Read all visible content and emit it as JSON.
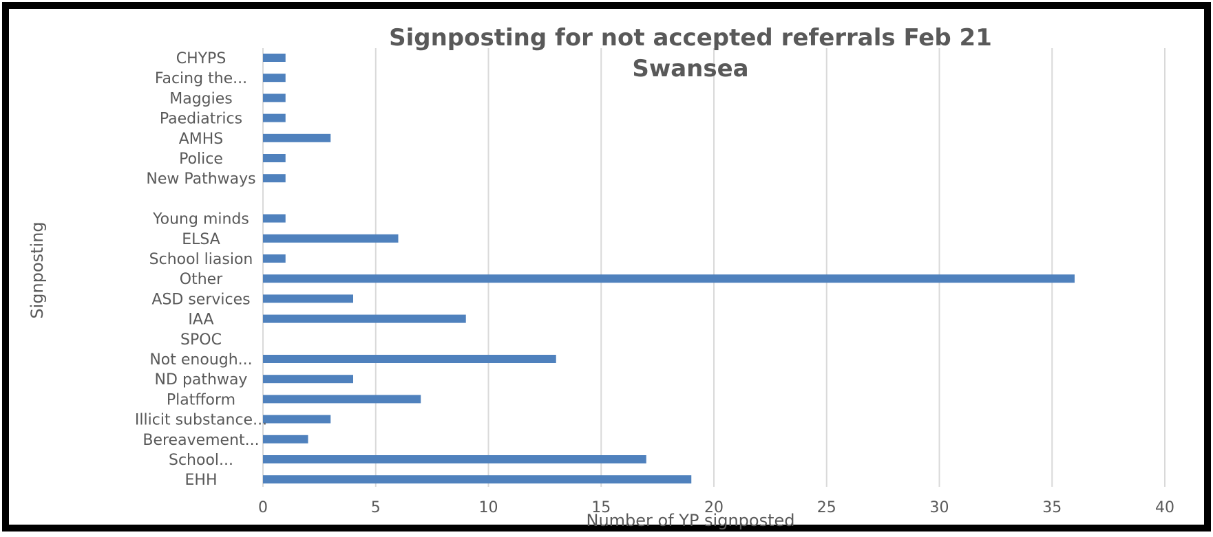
{
  "chart_data": {
    "type": "bar",
    "orientation": "horizontal",
    "title": "Signposting for not accepted referrals Feb 21 Swansea",
    "title_lines": [
      "Signposting for not accepted referrals Feb 21",
      "Swansea"
    ],
    "xlabel": "Number  of YP signposted",
    "ylabel": "Signposting",
    "xlim": [
      0,
      40
    ],
    "x_ticks": [
      0,
      5,
      10,
      15,
      20,
      25,
      30,
      35,
      40
    ],
    "grid": "vertical",
    "legend": "none",
    "bar_color": "#4f81bd",
    "categories": [
      "CHYPS",
      "Facing the...",
      "Maggies",
      "Paediatrics",
      "AMHS",
      "Police",
      "New Pathways",
      "",
      "Young minds",
      "ELSA",
      "School liasion",
      "Other",
      "ASD services",
      "IAA",
      "SPOC",
      "Not enough...",
      "ND pathway",
      "Platfform",
      "Illicit substance...",
      "Bereavement...",
      "School...",
      "EHH"
    ],
    "values": [
      1,
      1,
      1,
      1,
      3,
      1,
      1,
      0,
      1,
      6,
      1,
      36,
      4,
      9,
      0,
      13,
      4,
      7,
      3,
      2,
      17,
      19
    ]
  }
}
